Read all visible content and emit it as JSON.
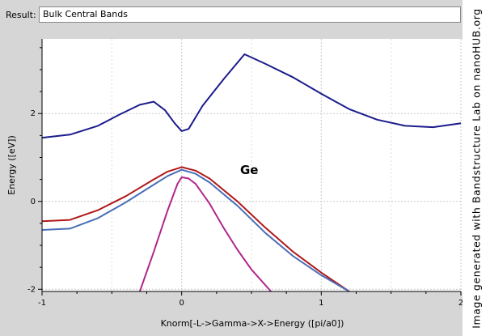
{
  "result": {
    "label": "Result:",
    "value": "Bulk Central Bands"
  },
  "watermark": "Image generated with Bandstructure Lab on nanoHUB.org",
  "chart_data": {
    "type": "line",
    "title": "",
    "xlabel": "Knorm[-L->Gamma->X->Energy ([pi/a0])",
    "ylabel": "Energy ([eV])",
    "xlim": [
      -1,
      2
    ],
    "ylim": [
      -2.05,
      3.7
    ],
    "xticks": [
      -1,
      0,
      1,
      2
    ],
    "yticks": [
      -2,
      0,
      2
    ],
    "grid": true,
    "legend": "none",
    "annotation": "Ge",
    "series": [
      {
        "color": "#1c1c8c",
        "x": [
          -1,
          -0.8,
          -0.6,
          -0.45,
          -0.3,
          -0.2,
          -0.12,
          -0.05,
          0,
          0.05,
          0.15,
          0.3,
          0.45,
          0.6,
          0.8,
          1.0,
          1.2,
          1.4,
          1.6,
          1.8,
          2.0
        ],
        "y": [
          1.45,
          1.52,
          1.72,
          1.97,
          2.2,
          2.27,
          2.08,
          1.78,
          1.6,
          1.65,
          2.18,
          2.78,
          3.35,
          3.13,
          2.82,
          2.45,
          2.1,
          1.86,
          1.72,
          1.69,
          1.78
        ]
      },
      {
        "color": "#b01818",
        "x": [
          -1,
          -0.8,
          -0.6,
          -0.4,
          -0.2,
          -0.1,
          0,
          0.1,
          0.2,
          0.4,
          0.6,
          0.8,
          1.0,
          1.2
        ],
        "y": [
          -0.45,
          -0.42,
          -0.2,
          0.12,
          0.5,
          0.68,
          0.78,
          0.7,
          0.52,
          0.0,
          -0.6,
          -1.15,
          -1.62,
          -2.05
        ]
      },
      {
        "color": "#4a6eb8",
        "x": [
          -1,
          -0.8,
          -0.6,
          -0.4,
          -0.2,
          -0.1,
          0,
          0.1,
          0.2,
          0.4,
          0.6,
          0.8,
          1.0,
          1.2
        ],
        "y": [
          -0.65,
          -0.62,
          -0.38,
          -0.02,
          0.38,
          0.58,
          0.72,
          0.63,
          0.43,
          -0.1,
          -0.72,
          -1.25,
          -1.68,
          -2.05
        ]
      },
      {
        "color": "#b0268c",
        "x": [
          -0.3,
          -0.2,
          -0.1,
          -0.03,
          0,
          0.05,
          0.1,
          0.2,
          0.3,
          0.4,
          0.5,
          0.64
        ],
        "y": [
          -2.05,
          -1.15,
          -0.2,
          0.4,
          0.55,
          0.52,
          0.4,
          -0.05,
          -0.6,
          -1.1,
          -1.55,
          -2.05
        ]
      }
    ]
  }
}
